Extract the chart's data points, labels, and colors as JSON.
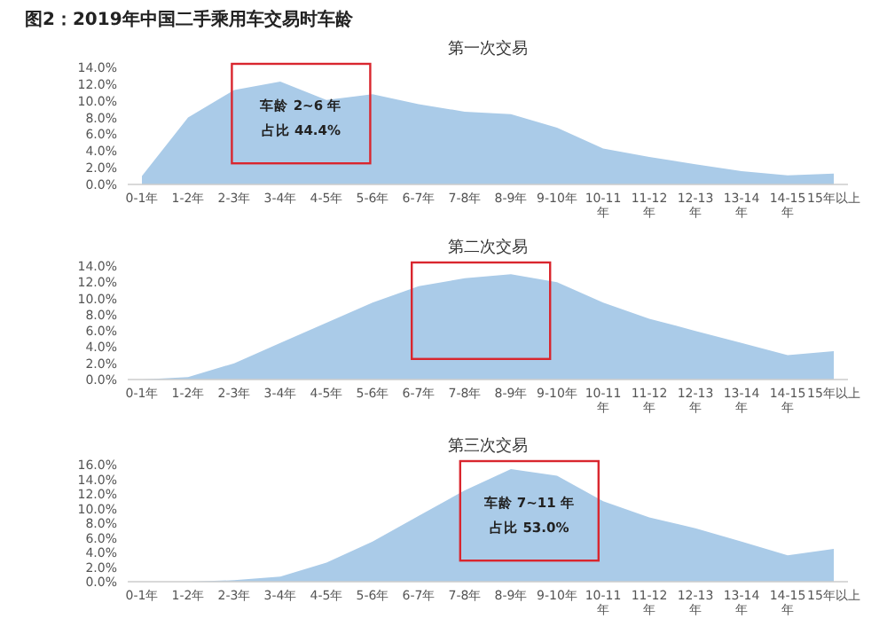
{
  "chart_data": [
    {
      "type": "area",
      "title": "图2：2019年中国二手乘用车交易时车龄",
      "subtitle": "第一次交易",
      "categories": [
        "0-1年",
        "1-2年",
        "2-3年",
        "3-4年",
        "4-5年",
        "5-6年",
        "6-7年",
        "7-8年",
        "8-9年",
        "9-10年",
        "10-11年",
        "11-12年",
        "12-13年",
        "13-14年",
        "14-15年",
        "15年以上"
      ],
      "series": [
        {
          "color": "#aacbe8",
          "values": [
            1.0,
            8.0,
            11.3,
            12.3,
            10.1,
            10.8,
            9.6,
            8.7,
            8.4,
            6.8,
            4.3,
            3.3,
            2.4,
            1.6,
            1.1,
            1.3
          ]
        }
      ],
      "ylim": [
        0,
        14
      ],
      "yticks": [
        {
          "value": 0,
          "label": "0.0%"
        },
        {
          "value": 2,
          "label": "2.0%"
        },
        {
          "value": 4,
          "label": "4.0%"
        },
        {
          "value": 6,
          "label": "6.0%"
        },
        {
          "value": 8,
          "label": "8.0%"
        },
        {
          "value": 10,
          "label": "10.0%"
        },
        {
          "value": 12,
          "label": "12.0%"
        },
        {
          "value": 14,
          "label": "14.0%"
        }
      ],
      "annotations": [
        "车龄 2~6 年",
        "占比 44.4%"
      ]
    },
    {
      "type": "area",
      "subtitle": "第二次交易",
      "categories": [
        "0-1年",
        "1-2年",
        "2-3年",
        "3-4年",
        "4-5年",
        "5-6年",
        "6-7年",
        "7-8年",
        "8-9年",
        "9-10年",
        "10-11年",
        "11-12年",
        "12-13年",
        "13-14年",
        "14-15年",
        "15年以上"
      ],
      "series": [
        {
          "color": "#aacbe8",
          "values": [
            0,
            0.3,
            2.0,
            4.5,
            7.0,
            9.5,
            11.5,
            12.5,
            13.0,
            12.0,
            9.5,
            7.5,
            6.0,
            4.5,
            3.0,
            3.5
          ]
        }
      ],
      "ylim": [
        0,
        14
      ],
      "yticks": [
        {
          "value": 0,
          "label": "0.0%"
        },
        {
          "value": 2,
          "label": "2.0%"
        },
        {
          "value": 4,
          "label": "4.0%"
        },
        {
          "value": 6,
          "label": "6.0%"
        },
        {
          "value": 8,
          "label": "8.0%"
        },
        {
          "value": 10,
          "label": "10.0%"
        },
        {
          "value": 12,
          "label": "12.0%"
        },
        {
          "value": 14,
          "label": "14.0%"
        }
      ]
    },
    {
      "type": "area",
      "subtitle": "第三次交易",
      "categories": [
        "0-1年",
        "1-2年",
        "2-3年",
        "3-4年",
        "4-5年",
        "5-6年",
        "6-7年",
        "7-8年",
        "8-9年",
        "9-10年",
        "10-11年",
        "11-12年",
        "12-13年",
        "13-14年",
        "14-15年",
        "15年以上"
      ],
      "series": [
        {
          "color": "#aacbe8",
          "values": [
            0,
            0,
            0.2,
            0.7,
            2.6,
            5.5,
            9.0,
            12.5,
            15.4,
            14.5,
            11.0,
            8.8,
            7.3,
            5.5,
            3.6,
            4.5
          ]
        }
      ],
      "ylim": [
        0,
        16
      ],
      "yticks": [
        {
          "value": 0,
          "label": "0.0%"
        },
        {
          "value": 2,
          "label": "2.0%"
        },
        {
          "value": 4,
          "label": "4.0%"
        },
        {
          "value": 6,
          "label": "6.0%"
        },
        {
          "value": 8,
          "label": "8.0%"
        },
        {
          "value": 10,
          "label": "10.0%"
        },
        {
          "value": 12,
          "label": "12.0%"
        },
        {
          "value": 14,
          "label": "14.0%"
        },
        {
          "value": 16,
          "label": "16.0%"
        }
      ],
      "annotations": [
        "车龄 7~11 年",
        "占比 53.0%"
      ]
    }
  ]
}
